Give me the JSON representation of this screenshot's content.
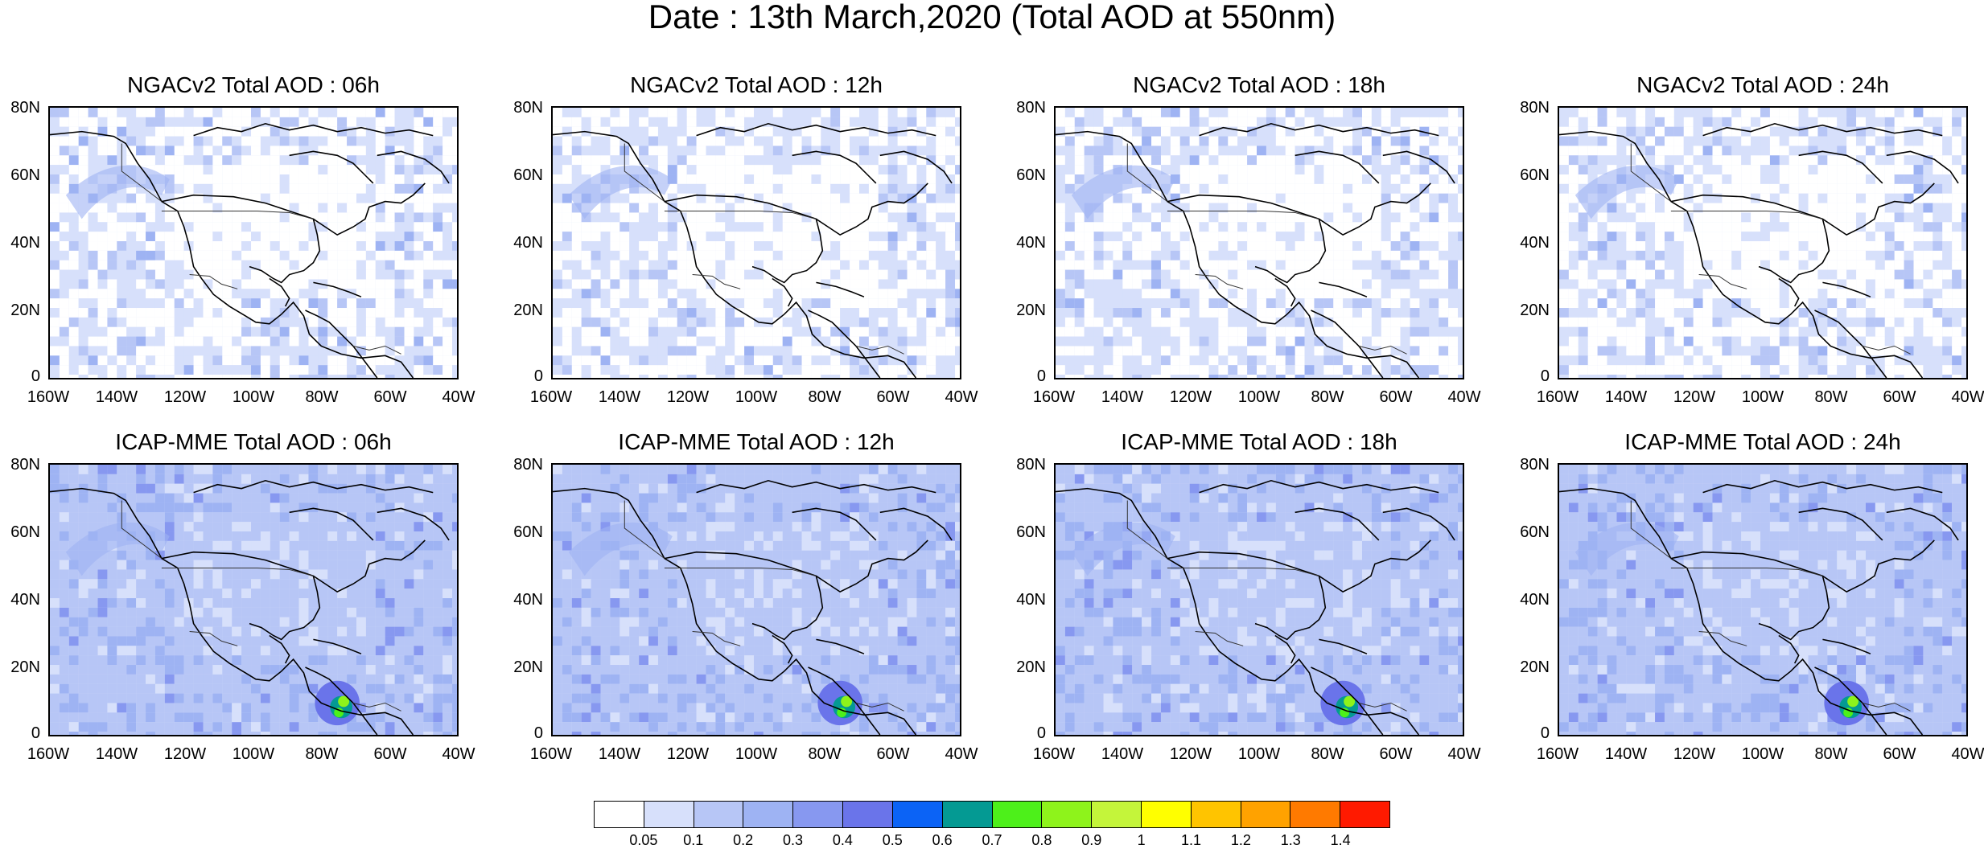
{
  "title": "Date : 13th March,2020 (Total AOD at 550nm)",
  "panels": [
    {
      "title": "NGACv2 Total AOD : 06h",
      "model": "NGACv2"
    },
    {
      "title": "NGACv2 Total AOD : 12h",
      "model": "NGACv2"
    },
    {
      "title": "NGACv2 Total AOD : 18h",
      "model": "NGACv2"
    },
    {
      "title": "NGACv2 Total AOD : 24h",
      "model": "NGACv2"
    },
    {
      "title": "ICAP-MME Total AOD : 06h",
      "model": "ICAP-MME"
    },
    {
      "title": "ICAP-MME Total AOD : 12h",
      "model": "ICAP-MME"
    },
    {
      "title": "ICAP-MME Total AOD : 18h",
      "model": "ICAP-MME"
    },
    {
      "title": "ICAP-MME Total AOD : 24h",
      "model": "ICAP-MME"
    }
  ],
  "lat_labels": [
    "80N",
    "60N",
    "40N",
    "20N",
    "0"
  ],
  "lon_labels": [
    "160W",
    "140W",
    "120W",
    "100W",
    "80W",
    "60W",
    "40W"
  ],
  "colorbar": {
    "colors": [
      "#ffffff",
      "#d7e0fb",
      "#b7c6f6",
      "#9eb3f3",
      "#8798f0",
      "#6a74ea",
      "#0b63f6",
      "#049a93",
      "#4df01a",
      "#8ef31b",
      "#c4f53a",
      "#ffff00",
      "#ffc400",
      "#ffa200",
      "#ff7a00",
      "#ff1a00"
    ],
    "labels": [
      "0.05",
      "0.1",
      "0.2",
      "0.3",
      "0.4",
      "0.5",
      "0.6",
      "0.7",
      "0.8",
      "0.9",
      "1",
      "1.1",
      "1.2",
      "1.3",
      "1.4"
    ]
  }
}
